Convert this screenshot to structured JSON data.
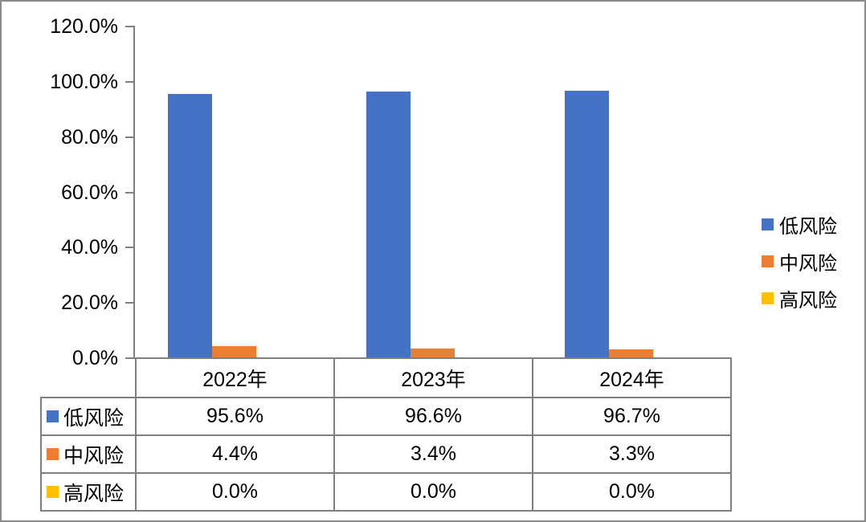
{
  "chart_data": {
    "type": "bar",
    "title": "",
    "xlabel": "",
    "ylabel": "",
    "categories": [
      "2022年",
      "2023年",
      "2024年"
    ],
    "series": [
      {
        "name": "低风险",
        "slug": "low-risk",
        "color": "#4472C4",
        "values": [
          95.6,
          96.6,
          96.7
        ],
        "display": [
          "95.6%",
          "96.6%",
          "96.7%"
        ]
      },
      {
        "name": "中风险",
        "slug": "mid-risk",
        "color": "#ED7D31",
        "values": [
          4.4,
          3.4,
          3.3
        ],
        "display": [
          "4.4%",
          "3.4%",
          "3.3%"
        ]
      },
      {
        "name": "高风险",
        "slug": "high-risk",
        "color": "#FFC000",
        "values": [
          0.0,
          0.0,
          0.0
        ],
        "display": [
          "0.0%",
          "0.0%",
          "0.0%"
        ]
      }
    ],
    "ylim": [
      0,
      120
    ],
    "ytick_step": 20,
    "ytick_labels": [
      "0.0%",
      "20.0%",
      "40.0%",
      "60.0%",
      "80.0%",
      "100.0%",
      "120.0%"
    ],
    "grid": false,
    "legend_position": "right",
    "data_table_shown": true
  },
  "colors": {
    "axis": "#808080",
    "table_border": "#7f7f7f",
    "frame_border": "#8a8a8a",
    "text": "#000000",
    "background": "#ffffff"
  }
}
